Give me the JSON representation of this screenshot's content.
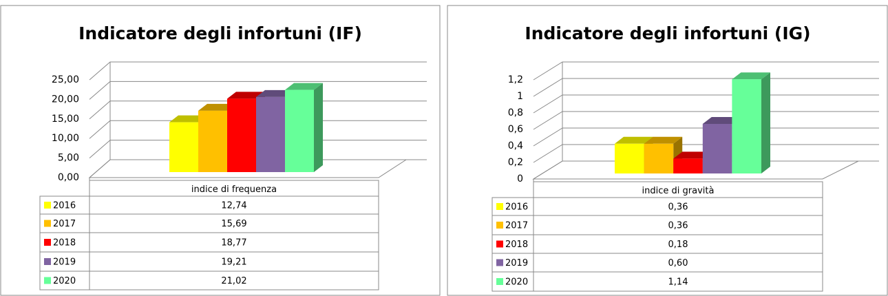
{
  "chart_data": [
    {
      "type": "bar",
      "title": "Indicatore degli infortuni (IF)",
      "categories": [
        "indice di frequenza"
      ],
      "series": [
        {
          "name": "2016",
          "color": "#ffff00",
          "values": [
            12.74
          ],
          "value_labels": [
            "12,74"
          ]
        },
        {
          "name": "2017",
          "color": "#ffc000",
          "values": [
            15.69
          ],
          "value_labels": [
            "15,69"
          ]
        },
        {
          "name": "2018",
          "color": "#ff0000",
          "values": [
            18.77
          ],
          "value_labels": [
            "18,77"
          ]
        },
        {
          "name": "2019",
          "color": "#8064a2",
          "values": [
            19.21
          ],
          "value_labels": [
            "19,21"
          ]
        },
        {
          "name": "2020",
          "color": "#66ff99",
          "values": [
            21.02
          ],
          "value_labels": [
            "21,02"
          ]
        }
      ],
      "ylim": [
        0,
        25
      ],
      "yticks": [
        {
          "value": 0,
          "label": "0,00"
        },
        {
          "value": 5,
          "label": "5,00"
        },
        {
          "value": 10,
          "label": "10,00"
        },
        {
          "value": 15,
          "label": "15,00"
        },
        {
          "value": 20,
          "label": "20,00"
        },
        {
          "value": 25,
          "label": "25,00"
        }
      ],
      "grid": true
    },
    {
      "type": "bar",
      "title": "Indicatore degli infortuni (IG)",
      "categories": [
        "indice di gravità"
      ],
      "series": [
        {
          "name": "2016",
          "color": "#ffff00",
          "values": [
            0.36
          ],
          "value_labels": [
            "0,36"
          ]
        },
        {
          "name": "2017",
          "color": "#ffc000",
          "values": [
            0.36
          ],
          "value_labels": [
            "0,36"
          ]
        },
        {
          "name": "2018",
          "color": "#ff0000",
          "values": [
            0.18
          ],
          "value_labels": [
            "0,18"
          ]
        },
        {
          "name": "2019",
          "color": "#8064a2",
          "values": [
            0.6
          ],
          "value_labels": [
            "0,60"
          ]
        },
        {
          "name": "2020",
          "color": "#66ff99",
          "values": [
            1.14
          ],
          "value_labels": [
            "1,14"
          ]
        }
      ],
      "ylim": [
        0,
        1.2
      ],
      "yticks": [
        0,
        {
          "value": 0.2,
          "label": "0,2"
        },
        {
          "value": 0.4,
          "label": "0,4"
        },
        {
          "value": 0.6,
          "label": "0,6"
        },
        {
          "value": 0.8,
          "label": "0,8"
        },
        1,
        {
          "value": 1.2,
          "label": "1,2"
        }
      ],
      "grid": true
    }
  ]
}
